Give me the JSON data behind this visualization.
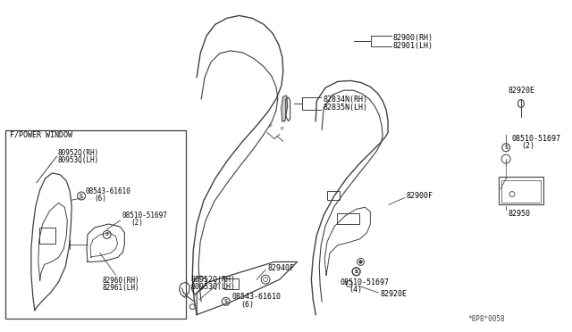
{
  "bg_color": "#ffffff",
  "diagram_ref": "*8P8*0058",
  "lc": "#404040",
  "tc": "#000000",
  "fs": 6.0,
  "labels": {
    "82900RH": "82900(RH)",
    "82901LH": "82901(LH)",
    "82834N_RH": "82834N(RH)",
    "82835N_LH": "82835N(LH)",
    "82920E_top": "82920E",
    "82920E_bot": "82920E",
    "08510_top": "08510-51697",
    "08510_top2": "(2)",
    "08510_bot": "08510-51697",
    "08510_bot2": "(4)",
    "08543_main": "08543-61610",
    "08543_main2": "(6)",
    "08543_inset": "08543-61610",
    "08543_inset2": "(6)",
    "08510_inset": "08510-51697",
    "08510_inset2": "(2)",
    "82940F": "82940F",
    "82900F": "82900F",
    "82950": "82950",
    "80952Q_main": "80952Q(RH)",
    "80953Q_main": "80953Q(LH)",
    "80952Q_inset": "80952Q(RH)",
    "80953Q_inset": "80953Q(LH)",
    "82960RH": "82960(RH)",
    "82961LH": "82961(LH)",
    "inset_title": "F/POWER WINDOW"
  }
}
